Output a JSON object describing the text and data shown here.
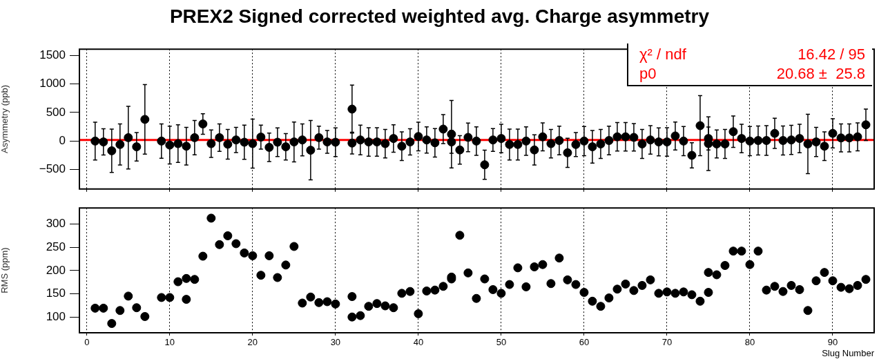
{
  "chart_data": [
    {
      "type": "scatter",
      "title": "PREX2 Signed corrected weighted avg. Charge asymmetry",
      "ylabel": "Asymmetry (ppb)",
      "xlim": [
        -0.9,
        95
      ],
      "xticks": [
        0,
        10,
        20,
        30,
        40,
        50,
        60,
        70,
        80,
        90
      ],
      "ylim": [
        -840,
        1610
      ],
      "yticks": [
        {
          "value": -500,
          "label": "−500"
        },
        0,
        500,
        1000,
        1500
      ],
      "tick_labels": "y",
      "grid": "x",
      "legend": false,
      "marker": "circle",
      "annotations": [
        "χ² / ndf",
        "16.42 / 95",
        "p0",
        "20.68 ±  25.8"
      ],
      "ref_lines": [
        {
          "axis": "y",
          "value": 20.68,
          "color": "#ff0000"
        }
      ],
      "series": [
        {
          "color": "#000000",
          "x": [
            1,
            2,
            3,
            4,
            5,
            6,
            7,
            9,
            10,
            11,
            12,
            13,
            14,
            15,
            16,
            17,
            18,
            19,
            20,
            21,
            22,
            23,
            24,
            25,
            26,
            27,
            28,
            29,
            30,
            32,
            32,
            33,
            34,
            35,
            36,
            37,
            38,
            39,
            40,
            41,
            42,
            43,
            44,
            44,
            45,
            46,
            47,
            48,
            49,
            50,
            51,
            52,
            53,
            54,
            55,
            56,
            57,
            58,
            59,
            60,
            61,
            62,
            63,
            64,
            65,
            66,
            67,
            68,
            69,
            70,
            71,
            72,
            73,
            74,
            75,
            75,
            76,
            77,
            78,
            79,
            80,
            81,
            82,
            83,
            84,
            85,
            86,
            87,
            88,
            89,
            90,
            91,
            92,
            93,
            94
          ],
          "values": [
            0,
            -15,
            -170,
            -60,
            60,
            -100,
            380,
            0,
            -70,
            -45,
            -90,
            60,
            300,
            -45,
            60,
            -55,
            20,
            -20,
            -45,
            70,
            -110,
            -20,
            -100,
            -15,
            20,
            -160,
            60,
            -15,
            -20,
            560,
            -35,
            20,
            -15,
            -15,
            -45,
            45,
            -90,
            -15,
            80,
            20,
            -30,
            210,
            120,
            -15,
            -155,
            65,
            0,
            -415,
            20,
            45,
            -60,
            -60,
            0,
            -155,
            75,
            -45,
            10,
            -205,
            -60,
            0,
            -100,
            -50,
            10,
            75,
            75,
            65,
            -50,
            20,
            -15,
            -15,
            90,
            0,
            -250,
            270,
            45,
            -45,
            -50,
            -50,
            165,
            45,
            0,
            10,
            10,
            135,
            10,
            20,
            45,
            -50,
            -15,
            -90,
            135,
            55,
            55,
            75,
            285
          ],
          "errors": [
            330,
            230,
            380,
            360,
            550,
            250,
            610,
            300,
            330,
            330,
            330,
            300,
            180,
            240,
            240,
            260,
            220,
            300,
            430,
            210,
            250,
            250,
            230,
            350,
            280,
            520,
            200,
            200,
            250,
            420,
            190,
            260,
            250,
            250,
            250,
            240,
            250,
            230,
            250,
            230,
            250,
            255,
            590,
            200,
            250,
            250,
            250,
            255,
            200,
            250,
            270,
            270,
            250,
            265,
            245,
            250,
            250,
            255,
            210,
            255,
            285,
            255,
            250,
            250,
            250,
            240,
            255,
            250,
            245,
            250,
            245,
            255,
            220,
            525,
            200,
            470,
            245,
            255,
            275,
            250,
            255,
            255,
            260,
            265,
            255,
            255,
            250,
            520,
            255,
            250,
            255,
            245,
            245,
            245,
            275
          ]
        }
      ]
    },
    {
      "type": "scatter",
      "xlabel": "Slug Number",
      "ylabel": "RMS (ppm)",
      "xlim": [
        -0.9,
        95
      ],
      "xticks": [
        0,
        10,
        20,
        30,
        40,
        50,
        60,
        70,
        80,
        90
      ],
      "ylim": [
        66,
        335
      ],
      "yticks": [
        100,
        150,
        200,
        250,
        300
      ],
      "grid": "x",
      "legend": false,
      "marker": "circle",
      "series": [
        {
          "color": "#000000",
          "x": [
            1,
            2,
            3,
            4,
            5,
            6,
            7,
            9,
            10,
            11,
            12,
            12,
            13,
            14,
            15,
            16,
            17,
            18,
            19,
            20,
            21,
            22,
            23,
            24,
            25,
            26,
            27,
            28,
            29,
            30,
            32,
            32,
            33,
            34,
            35,
            36,
            37,
            38,
            39,
            40,
            41,
            42,
            43,
            44,
            44,
            45,
            46,
            47,
            48,
            49,
            50,
            51,
            52,
            53,
            54,
            55,
            56,
            57,
            58,
            59,
            60,
            61,
            62,
            63,
            64,
            65,
            66,
            67,
            68,
            69,
            70,
            71,
            72,
            73,
            74,
            75,
            75,
            76,
            77,
            78,
            79,
            80,
            81,
            82,
            83,
            84,
            85,
            86,
            87,
            88,
            89,
            90,
            91,
            92,
            93,
            94
          ],
          "values": [
            119,
            119,
            86,
            114,
            145,
            120,
            101,
            142,
            142,
            176,
            183,
            138,
            181,
            231,
            313,
            256,
            275,
            258,
            238,
            232,
            190,
            232,
            185,
            212,
            252,
            130,
            143,
            131,
            133,
            128,
            144,
            100,
            103,
            123,
            129,
            124,
            120,
            151,
            155,
            107,
            156,
            158,
            166,
            182,
            186,
            276,
            195,
            140,
            182,
            159,
            151,
            170,
            206,
            165,
            208,
            213,
            172,
            227,
            180,
            170,
            153,
            134,
            123,
            141,
            160,
            171,
            157,
            168,
            180,
            151,
            154,
            151,
            154,
            148,
            134,
            196,
            153,
            191,
            211,
            242,
            242,
            213,
            242,
            158,
            166,
            155,
            168,
            159,
            114,
            178,
            196,
            178,
            164,
            161,
            168,
            181
          ]
        }
      ]
    }
  ]
}
